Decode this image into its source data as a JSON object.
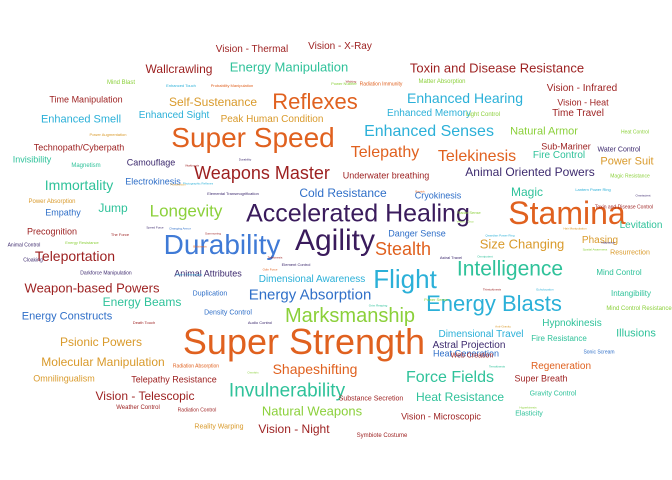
{
  "palette": {
    "crimson": "#9c1f1f",
    "orange": "#e8681e",
    "gold": "#d99a2b",
    "lime": "#8bcf3a",
    "teal": "#30bf9a",
    "cyan": "#1fb6d6",
    "blue": "#2f6fc8",
    "navy": "#3d2a6e",
    "purple": "#3a1b5c"
  },
  "words": [
    {
      "text": "Super Strength",
      "color": "#e0611f",
      "weight": 36
    },
    {
      "text": "Stamina",
      "color": "#e0611f",
      "weight": 32
    },
    {
      "text": "Agility",
      "color": "#3a1b5c",
      "weight": 30
    },
    {
      "text": "Super Speed",
      "color": "#e0611f",
      "weight": 28
    },
    {
      "text": "Durability",
      "color": "#3f7ad6",
      "weight": 28
    },
    {
      "text": "Accelerated Healing",
      "color": "#3a1b5c",
      "weight": 25
    },
    {
      "text": "Flight",
      "color": "#2bb0d8",
      "weight": 26
    },
    {
      "text": "Reflexes",
      "color": "#e0611f",
      "weight": 22
    },
    {
      "text": "Energy Blasts",
      "color": "#2bb0d8",
      "weight": 22
    },
    {
      "text": "Intelligence",
      "color": "#2fc29a",
      "weight": 21
    },
    {
      "text": "Marksmanship",
      "color": "#8bd03a",
      "weight": 20
    },
    {
      "text": "Invulnerability",
      "color": "#2fc29a",
      "weight": 19
    },
    {
      "text": "Weapons Master",
      "color": "#9c1f1f",
      "weight": 18
    },
    {
      "text": "Stealth",
      "color": "#e0611f",
      "weight": 18
    },
    {
      "text": "Longevity",
      "color": "#8bd03a",
      "weight": 17
    },
    {
      "text": "Force Fields",
      "color": "#2fc29a",
      "weight": 16
    },
    {
      "text": "Telepathy",
      "color": "#e0611f",
      "weight": 16
    },
    {
      "text": "Telekinesis",
      "color": "#e0611f",
      "weight": 16
    },
    {
      "text": "Enhanced Senses",
      "color": "#2bb0d8",
      "weight": 16
    },
    {
      "text": "Energy Absorption",
      "color": "#2f6fc8",
      "weight": 15
    },
    {
      "text": "Immortality",
      "color": "#2fc29a",
      "weight": 14
    },
    {
      "text": "Enhanced Hearing",
      "color": "#2bb0d8",
      "weight": 14
    },
    {
      "text": "Teleportation",
      "color": "#9c1f1f",
      "weight": 14
    },
    {
      "text": "Weapon-based Powers",
      "color": "#9c1f1f",
      "weight": 13
    },
    {
      "text": "Shapeshifting",
      "color": "#e0611f",
      "weight": 14
    },
    {
      "text": "Natural Weapons",
      "color": "#8bd03a",
      "weight": 13
    },
    {
      "text": "Energy Manipulation",
      "color": "#2fc29a",
      "weight": 13
    },
    {
      "text": "Toxin and Disease Resistance",
      "color": "#9c1f1f",
      "weight": 13
    },
    {
      "text": "Size Changing",
      "color": "#d99a2b",
      "weight": 13
    },
    {
      "text": "Heat Resistance",
      "color": "#2fc29a",
      "weight": 12
    },
    {
      "text": "Cold Resistance",
      "color": "#2f6fc8",
      "weight": 12
    },
    {
      "text": "Psionic Powers",
      "color": "#d99a2b",
      "weight": 12
    },
    {
      "text": "Energy Beams",
      "color": "#2fc29a",
      "weight": 12
    },
    {
      "text": "Jump",
      "color": "#2fc29a",
      "weight": 12
    },
    {
      "text": "Self-Sustenance",
      "color": "#d99a2b",
      "weight": 12
    },
    {
      "text": "Animal Oriented Powers",
      "color": "#3d2a6e",
      "weight": 12
    },
    {
      "text": "Vision - Telescopic",
      "color": "#9c1f1f",
      "weight": 12
    },
    {
      "text": "Vision - Night",
      "color": "#9c1f1f",
      "weight": 12
    },
    {
      "text": "Molecular Manipulation",
      "color": "#d99a2b",
      "weight": 12
    },
    {
      "text": "Energy Constructs",
      "color": "#2f6fc8",
      "weight": 11
    },
    {
      "text": "Magic",
      "color": "#2fc29a",
      "weight": 12
    },
    {
      "text": "Wallcrawling",
      "color": "#9c1f1f",
      "weight": 12
    },
    {
      "text": "Enhanced Smell",
      "color": "#2bb0d8",
      "weight": 11
    },
    {
      "text": "Dimensional Awareness",
      "color": "#2bb0d8",
      "weight": 10
    },
    {
      "text": "Dimensional Travel",
      "color": "#2bb0d8",
      "weight": 10
    },
    {
      "text": "Astral Projection",
      "color": "#3d2a6e",
      "weight": 10
    },
    {
      "text": "Natural Armor",
      "color": "#8bd03a",
      "weight": 11
    },
    {
      "text": "Phasing",
      "color": "#d99a2b",
      "weight": 10
    },
    {
      "text": "Regeneration",
      "color": "#e0611f",
      "weight": 10
    },
    {
      "text": "Hypnokinesis",
      "color": "#2fc29a",
      "weight": 10
    },
    {
      "text": "Illusions",
      "color": "#2fc29a",
      "weight": 11
    },
    {
      "text": "Levitation",
      "color": "#2fc29a",
      "weight": 10
    },
    {
      "text": "Power Suit",
      "color": "#d99a2b",
      "weight": 11
    },
    {
      "text": "Vision - Thermal",
      "color": "#9c1f1f",
      "weight": 10
    },
    {
      "text": "Vision - X-Ray",
      "color": "#9c1f1f",
      "weight": 10
    },
    {
      "text": "Vision - Infrared",
      "color": "#9c1f1f",
      "weight": 10
    },
    {
      "text": "Vision - Heat",
      "color": "#9c1f1f",
      "weight": 9
    },
    {
      "text": "Vision - Microscopic",
      "color": "#9c1f1f",
      "weight": 9
    },
    {
      "text": "Time Travel",
      "color": "#9c1f1f",
      "weight": 10
    },
    {
      "text": "Time Manipulation",
      "color": "#9c1f1f",
      "weight": 9
    },
    {
      "text": "Sub-Mariner",
      "color": "#9c1f1f",
      "weight": 9
    },
    {
      "text": "Technopath/Cyberpath",
      "color": "#9c1f1f",
      "weight": 9
    },
    {
      "text": "Enhanced Sight",
      "color": "#2bb0d8",
      "weight": 10
    },
    {
      "text": "Enhanced Memory",
      "color": "#2bb0d8",
      "weight": 10
    },
    {
      "text": "Peak Human Condition",
      "color": "#d99a2b",
      "weight": 10
    },
    {
      "text": "Camouflage",
      "color": "#3d2a6e",
      "weight": 9
    },
    {
      "text": "Fire Control",
      "color": "#2fc29a",
      "weight": 10
    },
    {
      "text": "Water Control",
      "color": "#3d2a6e",
      "weight": 7
    },
    {
      "text": "Underwater breathing",
      "color": "#9c1f1f",
      "weight": 9
    },
    {
      "text": "Cryokinesis",
      "color": "#2f6fc8",
      "weight": 9
    },
    {
      "text": "Electrokinesis",
      "color": "#2f6fc8",
      "weight": 9
    },
    {
      "text": "Invisibility",
      "color": "#2fc29a",
      "weight": 9
    },
    {
      "text": "Empathy",
      "color": "#2f6fc8",
      "weight": 9
    },
    {
      "text": "Precognition",
      "color": "#9c1f1f",
      "weight": 9
    },
    {
      "text": "Danger Sense",
      "color": "#2f6fc8",
      "weight": 9
    },
    {
      "text": "Animal Attributes",
      "color": "#3d2a6e",
      "weight": 9
    },
    {
      "text": "Duplication",
      "color": "#2f6fc8",
      "weight": 7
    },
    {
      "text": "Density Control",
      "color": "#2f6fc8",
      "weight": 7
    },
    {
      "text": "Mind Control",
      "color": "#2fc29a",
      "weight": 8
    },
    {
      "text": "Intangibility",
      "color": "#2fc29a",
      "weight": 8
    },
    {
      "text": "Fire Resistance",
      "color": "#2fc29a",
      "weight": 8
    },
    {
      "text": "Heat Generation",
      "color": "#2f6fc8",
      "weight": 9
    },
    {
      "text": "Omnilingualism",
      "color": "#d99a2b",
      "weight": 9
    },
    {
      "text": "Telepathy Resistance",
      "color": "#9c1f1f",
      "weight": 9
    },
    {
      "text": "Super Breath",
      "color": "#9c1f1f",
      "weight": 9
    },
    {
      "text": "Gravity Control",
      "color": "#2fc29a",
      "weight": 7
    },
    {
      "text": "Substance Secretion",
      "color": "#9c1f1f",
      "weight": 7
    },
    {
      "text": "Web Creation",
      "color": "#9c1f1f",
      "weight": 7
    },
    {
      "text": "Weather Control",
      "color": "#9c1f1f",
      "weight": 6
    },
    {
      "text": "Reality Warping",
      "color": "#d99a2b",
      "weight": 7
    },
    {
      "text": "Symbiote Costume",
      "color": "#9c1f1f",
      "weight": 6
    },
    {
      "text": "Elasticity",
      "color": "#2fc29a",
      "weight": 7
    },
    {
      "text": "Resurrection",
      "color": "#d99a2b",
      "weight": 7
    },
    {
      "text": "Mind Blast",
      "color": "#8bd03a",
      "weight": 6
    },
    {
      "text": "Cloaking",
      "color": "#3d2a6e",
      "weight": 5
    },
    {
      "text": "Animal Control",
      "color": "#3d2a6e",
      "weight": 5
    },
    {
      "text": "Power Absorption",
      "color": "#d99a2b",
      "weight": 6
    },
    {
      "text": "Magnetism",
      "color": "#2fc29a",
      "weight": 6
    },
    {
      "text": "Light Control",
      "color": "#8bd03a",
      "weight": 6
    },
    {
      "text": "Radiation Immunity",
      "color": "#e0611f",
      "weight": 5
    },
    {
      "text": "Matter Absorption",
      "color": "#8bd03a",
      "weight": 6
    },
    {
      "text": "Heat Control",
      "color": "#8bd03a",
      "weight": 5
    },
    {
      "text": "Magic Resistance",
      "color": "#8bd03a",
      "weight": 5
    },
    {
      "text": "Toxin and Disease Control",
      "color": "#9c1f1f",
      "weight": 5
    },
    {
      "text": "Mind Control Resistance",
      "color": "#8bd03a",
      "weight": 6
    },
    {
      "text": "Sonic Scream",
      "color": "#2f6fc8",
      "weight": 5
    },
    {
      "text": "Radiation Absorption",
      "color": "#e0611f",
      "weight": 5
    },
    {
      "text": "Radiation Control",
      "color": "#9c1f1f",
      "weight": 5
    },
    {
      "text": "Darkforce Manipulation",
      "color": "#3d2a6e",
      "weight": 5
    },
    {
      "text": "The Force",
      "color": "#9c1f1f",
      "weight": 4
    },
    {
      "text": "Energy Resistance",
      "color": "#8bd03a",
      "weight": 4
    },
    {
      "text": "Enhanced Touch",
      "color": "#2bb0d8",
      "weight": 4
    },
    {
      "text": "Probability Manipulation",
      "color": "#e0611f",
      "weight": 4
    },
    {
      "text": "Power Augmentation",
      "color": "#d99a2b",
      "weight": 4
    },
    {
      "text": "Elemental Transmogrification",
      "color": "#3d2a6e",
      "weight": 4
    },
    {
      "text": "Lantern Power Ring",
      "color": "#2bb0d8",
      "weight": 4
    },
    {
      "text": "Element Control",
      "color": "#3d2a6e",
      "weight": 4
    },
    {
      "text": "Death Touch",
      "color": "#9c1f1f",
      "weight": 4
    },
    {
      "text": "Audio Control",
      "color": "#3d2a6e",
      "weight": 4
    },
    {
      "text": "Astral Travel",
      "color": "#3d2a6e",
      "weight": 4
    },
    {
      "text": "Power Sense",
      "color": "#8bd03a",
      "weight": 4
    },
    {
      "text": "Power Nullifier",
      "color": "#8bd03a",
      "weight": 4
    },
    {
      "text": "Adaptation",
      "color": "#3d2a6e",
      "weight": 3
    },
    {
      "text": "Durability",
      "color": "#3d2a6e",
      "weight": 3
    },
    {
      "text": "Vitakinesis",
      "color": "#9c1f1f",
      "weight": 3
    },
    {
      "text": "Photographic Reflexes",
      "color": "#2bb0d8",
      "weight": 3
    },
    {
      "text": "Banish",
      "color": "#e0611f",
      "weight": 3
    },
    {
      "text": "Possession",
      "color": "#d99a2b",
      "weight": 3
    },
    {
      "text": "Summoning",
      "color": "#9c1f1f",
      "weight": 3
    },
    {
      "text": "Telekinesis",
      "color": "#9c1f1f",
      "weight": 3
    },
    {
      "text": "Omnipotent",
      "color": "#2fc29a",
      "weight": 3
    },
    {
      "text": "Vision - Cryo",
      "color": "#8bd03a",
      "weight": 3
    },
    {
      "text": "Hair Manipulation",
      "color": "#d99a2b",
      "weight": 3
    },
    {
      "text": "Spatial Awareness",
      "color": "#8bd03a",
      "weight": 3
    },
    {
      "text": "Omniscient",
      "color": "#3d2a6e",
      "weight": 3
    },
    {
      "text": "Echolocation",
      "color": "#2bb0d8",
      "weight": 3
    },
    {
      "text": "Thirstokinesis",
      "color": "#9c1f1f",
      "weight": 3
    },
    {
      "text": "Grim Reaping",
      "color": "#2fc29a",
      "weight": 3
    },
    {
      "text": "Odin Force",
      "color": "#e0611f",
      "weight": 3
    },
    {
      "text": "Qwardian Power Ring",
      "color": "#2bb0d8",
      "weight": 3
    },
    {
      "text": "Omnitrix",
      "color": "#8bd03a",
      "weight": 3
    },
    {
      "text": "Speed Force",
      "color": "#3d2a6e",
      "weight": 3
    },
    {
      "text": "Changing Armor",
      "color": "#2f6fc8",
      "weight": 3
    },
    {
      "text": "Biokinesis",
      "color": "#e0611f",
      "weight": 3
    },
    {
      "text": "Anti-Gravity",
      "color": "#d99a2b",
      "weight": 3
    },
    {
      "text": "Terrakinesis",
      "color": "#2fc29a",
      "weight": 3
    },
    {
      "text": "Hyperkinesis",
      "color": "#8bd03a",
      "weight": 3
    },
    {
      "text": "Wishing",
      "color": "#9c1f1f",
      "weight": 3
    },
    {
      "text": "Vision - Microscopic",
      "color": "#2bb0d8",
      "weight": 3
    },
    {
      "text": "Radar Sense",
      "color": "#8bd03a",
      "weight": 4
    },
    {
      "text": "Illumination",
      "color": "#d99a2b",
      "weight": 3
    },
    {
      "text": "Electronic Interface",
      "color": "#2fc29a",
      "weight": 3
    }
  ]
}
